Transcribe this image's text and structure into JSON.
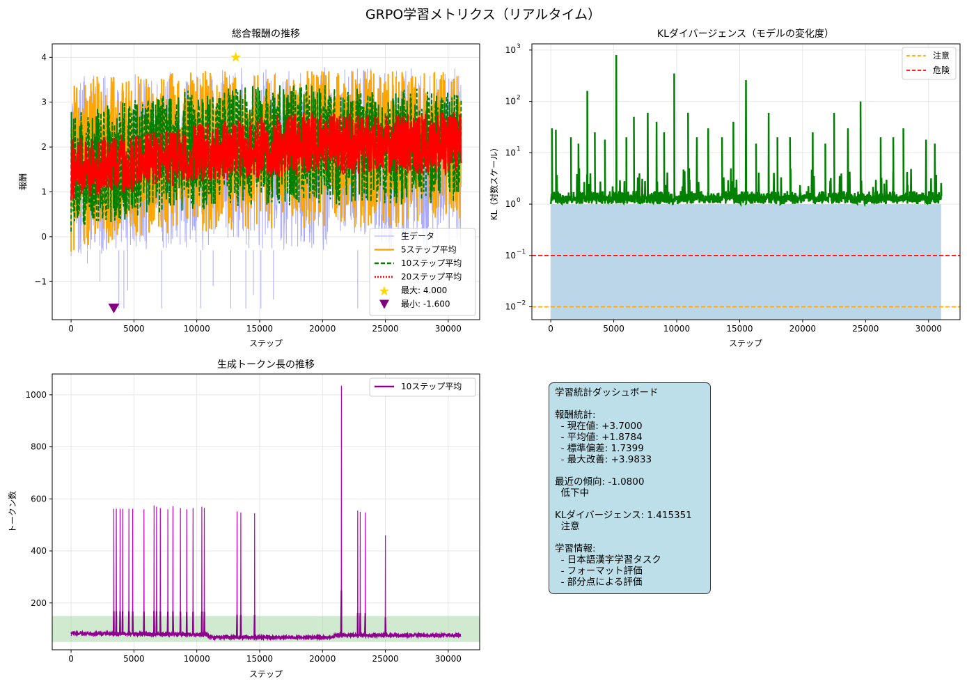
{
  "figure": {
    "title": "GRPO学習メトリクス（リアルタイム）"
  },
  "chart_data": [
    {
      "id": "reward",
      "type": "line",
      "title": "総合報酬の推移",
      "xlabel": "ステップ",
      "ylabel": "報酬",
      "xlim": [
        -1500,
        32500
      ],
      "ylim": [
        -1.85,
        4.3
      ],
      "xticks": [
        0,
        5000,
        10000,
        15000,
        20000,
        25000,
        30000
      ],
      "yticks": [
        -1,
        0,
        1,
        2,
        3,
        4
      ],
      "grid": true,
      "legend_position": "lower-right",
      "series": [
        {
          "name": "生データ",
          "color": "#a9a9ff",
          "style": "solid",
          "band_low": [
            -0.45,
            -0.35,
            -0.3,
            -0.3,
            -0.3,
            -0.3,
            -0.3
          ],
          "band_high": [
            3.6,
            3.7,
            3.7,
            3.8,
            3.8,
            3.8,
            3.8
          ]
        },
        {
          "name": "5ステップ平均",
          "color": "#ffa500",
          "style": "solid",
          "band_low": [
            -0.35,
            0.0,
            0.1,
            0.15,
            0.2,
            0.2,
            0.2
          ],
          "band_high": [
            3.6,
            3.7,
            3.7,
            3.7,
            3.7,
            3.7,
            3.7
          ]
        },
        {
          "name": "10ステップ平均",
          "color": "#008000",
          "style": "dashed",
          "band_low": [
            0.1,
            0.4,
            0.6,
            0.7,
            0.7,
            0.7,
            0.7
          ],
          "band_high": [
            2.9,
            3.1,
            3.3,
            3.4,
            3.4,
            3.3,
            3.3
          ]
        },
        {
          "name": "20ステップ平均",
          "color": "#ff0000",
          "style": "dotted",
          "band_low": [
            0.8,
            1.0,
            1.2,
            1.3,
            1.4,
            1.4,
            1.4
          ],
          "band_high": [
            2.2,
            2.3,
            2.5,
            2.7,
            2.8,
            2.7,
            2.8
          ]
        }
      ],
      "band_x": [
        0,
        5000,
        10000,
        15000,
        20000,
        25000,
        31000
      ],
      "outlier_dips": [
        {
          "x": 1300,
          "y": -0.6
        },
        {
          "x": 2300,
          "y": -1.0
        },
        {
          "x": 3800,
          "y": -1.6
        },
        {
          "x": 4200,
          "y": -1.6
        },
        {
          "x": 4500,
          "y": -1.2
        },
        {
          "x": 7200,
          "y": -1.6
        },
        {
          "x": 10300,
          "y": -1.6
        },
        {
          "x": 11300,
          "y": -1.1
        },
        {
          "x": 12700,
          "y": -1.6
        },
        {
          "x": 13900,
          "y": -1.6
        },
        {
          "x": 14500,
          "y": -1.3
        },
        {
          "x": 15100,
          "y": -1.6
        },
        {
          "x": 16100,
          "y": -1.4
        },
        {
          "x": 22800,
          "y": -1.6
        },
        {
          "x": 29000,
          "y": -0.9
        }
      ],
      "markers": [
        {
          "label": "最大: 4.000",
          "x": 13100,
          "y": 4.0,
          "shape": "star",
          "color": "#ffd700"
        },
        {
          "label": "最小: -1.600",
          "x": 3400,
          "y": -1.6,
          "shape": "triangle-down",
          "color": "#800080"
        }
      ]
    },
    {
      "id": "kl",
      "type": "line",
      "title": "KLダイバージェンス（モデルの変化度）",
      "xlabel": "ステップ",
      "ylabel": "KL（対数スケール）",
      "yscale": "log",
      "xlim": [
        -1500,
        32500
      ],
      "ylim_log10": [
        -2.25,
        3.12
      ],
      "xticks": [
        0,
        5000,
        10000,
        15000,
        20000,
        25000,
        30000
      ],
      "yticks_exp": [
        -2,
        -1,
        0,
        1,
        2,
        3
      ],
      "grid": true,
      "legend_position": "top-right",
      "fill_color": "#bad6e8",
      "fill_top": 1.0,
      "series": [
        {
          "name": "KL",
          "color": "#008000",
          "band_low": 1.0,
          "band_high": 1.8
        }
      ],
      "spikes": [
        {
          "x": 100,
          "y": 30
        },
        {
          "x": 400,
          "y": 28
        },
        {
          "x": 1600,
          "y": 20
        },
        {
          "x": 2200,
          "y": 15
        },
        {
          "x": 2900,
          "y": 160
        },
        {
          "x": 3500,
          "y": 25
        },
        {
          "x": 4300,
          "y": 18
        },
        {
          "x": 5200,
          "y": 800
        },
        {
          "x": 6000,
          "y": 20
        },
        {
          "x": 6600,
          "y": 50
        },
        {
          "x": 7700,
          "y": 60
        },
        {
          "x": 8400,
          "y": 40
        },
        {
          "x": 9000,
          "y": 25
        },
        {
          "x": 9800,
          "y": 350
        },
        {
          "x": 10900,
          "y": 60
        },
        {
          "x": 11600,
          "y": 20
        },
        {
          "x": 12500,
          "y": 30
        },
        {
          "x": 13600,
          "y": 20
        },
        {
          "x": 14500,
          "y": 40
        },
        {
          "x": 15500,
          "y": 260
        },
        {
          "x": 16300,
          "y": 15
        },
        {
          "x": 17300,
          "y": 60
        },
        {
          "x": 18000,
          "y": 20
        },
        {
          "x": 19000,
          "y": 20
        },
        {
          "x": 20800,
          "y": 25
        },
        {
          "x": 21800,
          "y": 15
        },
        {
          "x": 22500,
          "y": 60
        },
        {
          "x": 23600,
          "y": 30
        },
        {
          "x": 24600,
          "y": 100
        },
        {
          "x": 26200,
          "y": 20
        },
        {
          "x": 27200,
          "y": 20
        },
        {
          "x": 28000,
          "y": 30
        },
        {
          "x": 29800,
          "y": 18
        },
        {
          "x": 30500,
          "y": 15
        }
      ],
      "hlines": [
        {
          "name": "注意",
          "y": 0.01,
          "color": "#ffa500"
        },
        {
          "name": "危険",
          "y": 0.1,
          "color": "#ff0000"
        }
      ]
    },
    {
      "id": "tokens",
      "type": "line",
      "title": "生成トークン長の推移",
      "xlabel": "ステップ",
      "ylabel": "トークン数",
      "xlim": [
        -1500,
        32500
      ],
      "ylim": [
        20,
        1080
      ],
      "xticks": [
        0,
        5000,
        10000,
        15000,
        20000,
        25000,
        30000
      ],
      "yticks": [
        200,
        400,
        600,
        800,
        1000
      ],
      "grid": true,
      "legend_position": "top-right",
      "band": {
        "from": 50,
        "to": 150,
        "color": "#a8d8a8"
      },
      "baseline": [
        {
          "x": 0,
          "y": 82
        },
        {
          "x": 3000,
          "y": 82
        },
        {
          "x": 7000,
          "y": 80
        },
        {
          "x": 10800,
          "y": 78
        },
        {
          "x": 11000,
          "y": 68
        },
        {
          "x": 20800,
          "y": 68
        },
        {
          "x": 21000,
          "y": 76
        },
        {
          "x": 31000,
          "y": 76
        }
      ],
      "spikes": [
        {
          "x": 3400,
          "y": 562
        },
        {
          "x": 3600,
          "y": 562
        },
        {
          "x": 3900,
          "y": 562
        },
        {
          "x": 4100,
          "y": 562
        },
        {
          "x": 4600,
          "y": 562
        },
        {
          "x": 4900,
          "y": 562
        },
        {
          "x": 5800,
          "y": 560
        },
        {
          "x": 6600,
          "y": 575
        },
        {
          "x": 6800,
          "y": 570
        },
        {
          "x": 7100,
          "y": 565
        },
        {
          "x": 7700,
          "y": 560
        },
        {
          "x": 8100,
          "y": 572
        },
        {
          "x": 8700,
          "y": 565
        },
        {
          "x": 9200,
          "y": 560
        },
        {
          "x": 9700,
          "y": 565
        },
        {
          "x": 10400,
          "y": 570
        },
        {
          "x": 10600,
          "y": 565
        },
        {
          "x": 13200,
          "y": 552
        },
        {
          "x": 13500,
          "y": 548
        },
        {
          "x": 14600,
          "y": 545
        },
        {
          "x": 21500,
          "y": 1035
        },
        {
          "x": 22800,
          "y": 555
        },
        {
          "x": 23000,
          "y": 550
        },
        {
          "x": 23400,
          "y": 548
        },
        {
          "x": 25000,
          "y": 460
        }
      ],
      "series": [
        {
          "name": "10ステップ平均",
          "color": "#8b008b"
        }
      ]
    }
  ],
  "dashboard": {
    "title": "学習統計ダッシュボード",
    "lines": [
      "",
      "報酬統計:",
      "  - 現在値: +3.7000",
      "  - 平均値: +1.8784",
      "  - 標準偏差: 1.7399",
      "  - 最大改善: +3.9833",
      "",
      "最近の傾向: -1.0800",
      "  低下中",
      "",
      "KLダイバージェンス: 1.415351",
      "  注意",
      "",
      "学習情報:",
      "  - 日本語漢字学習タスク",
      "  - フォーマット評価",
      "  - 部分点による評価"
    ]
  }
}
